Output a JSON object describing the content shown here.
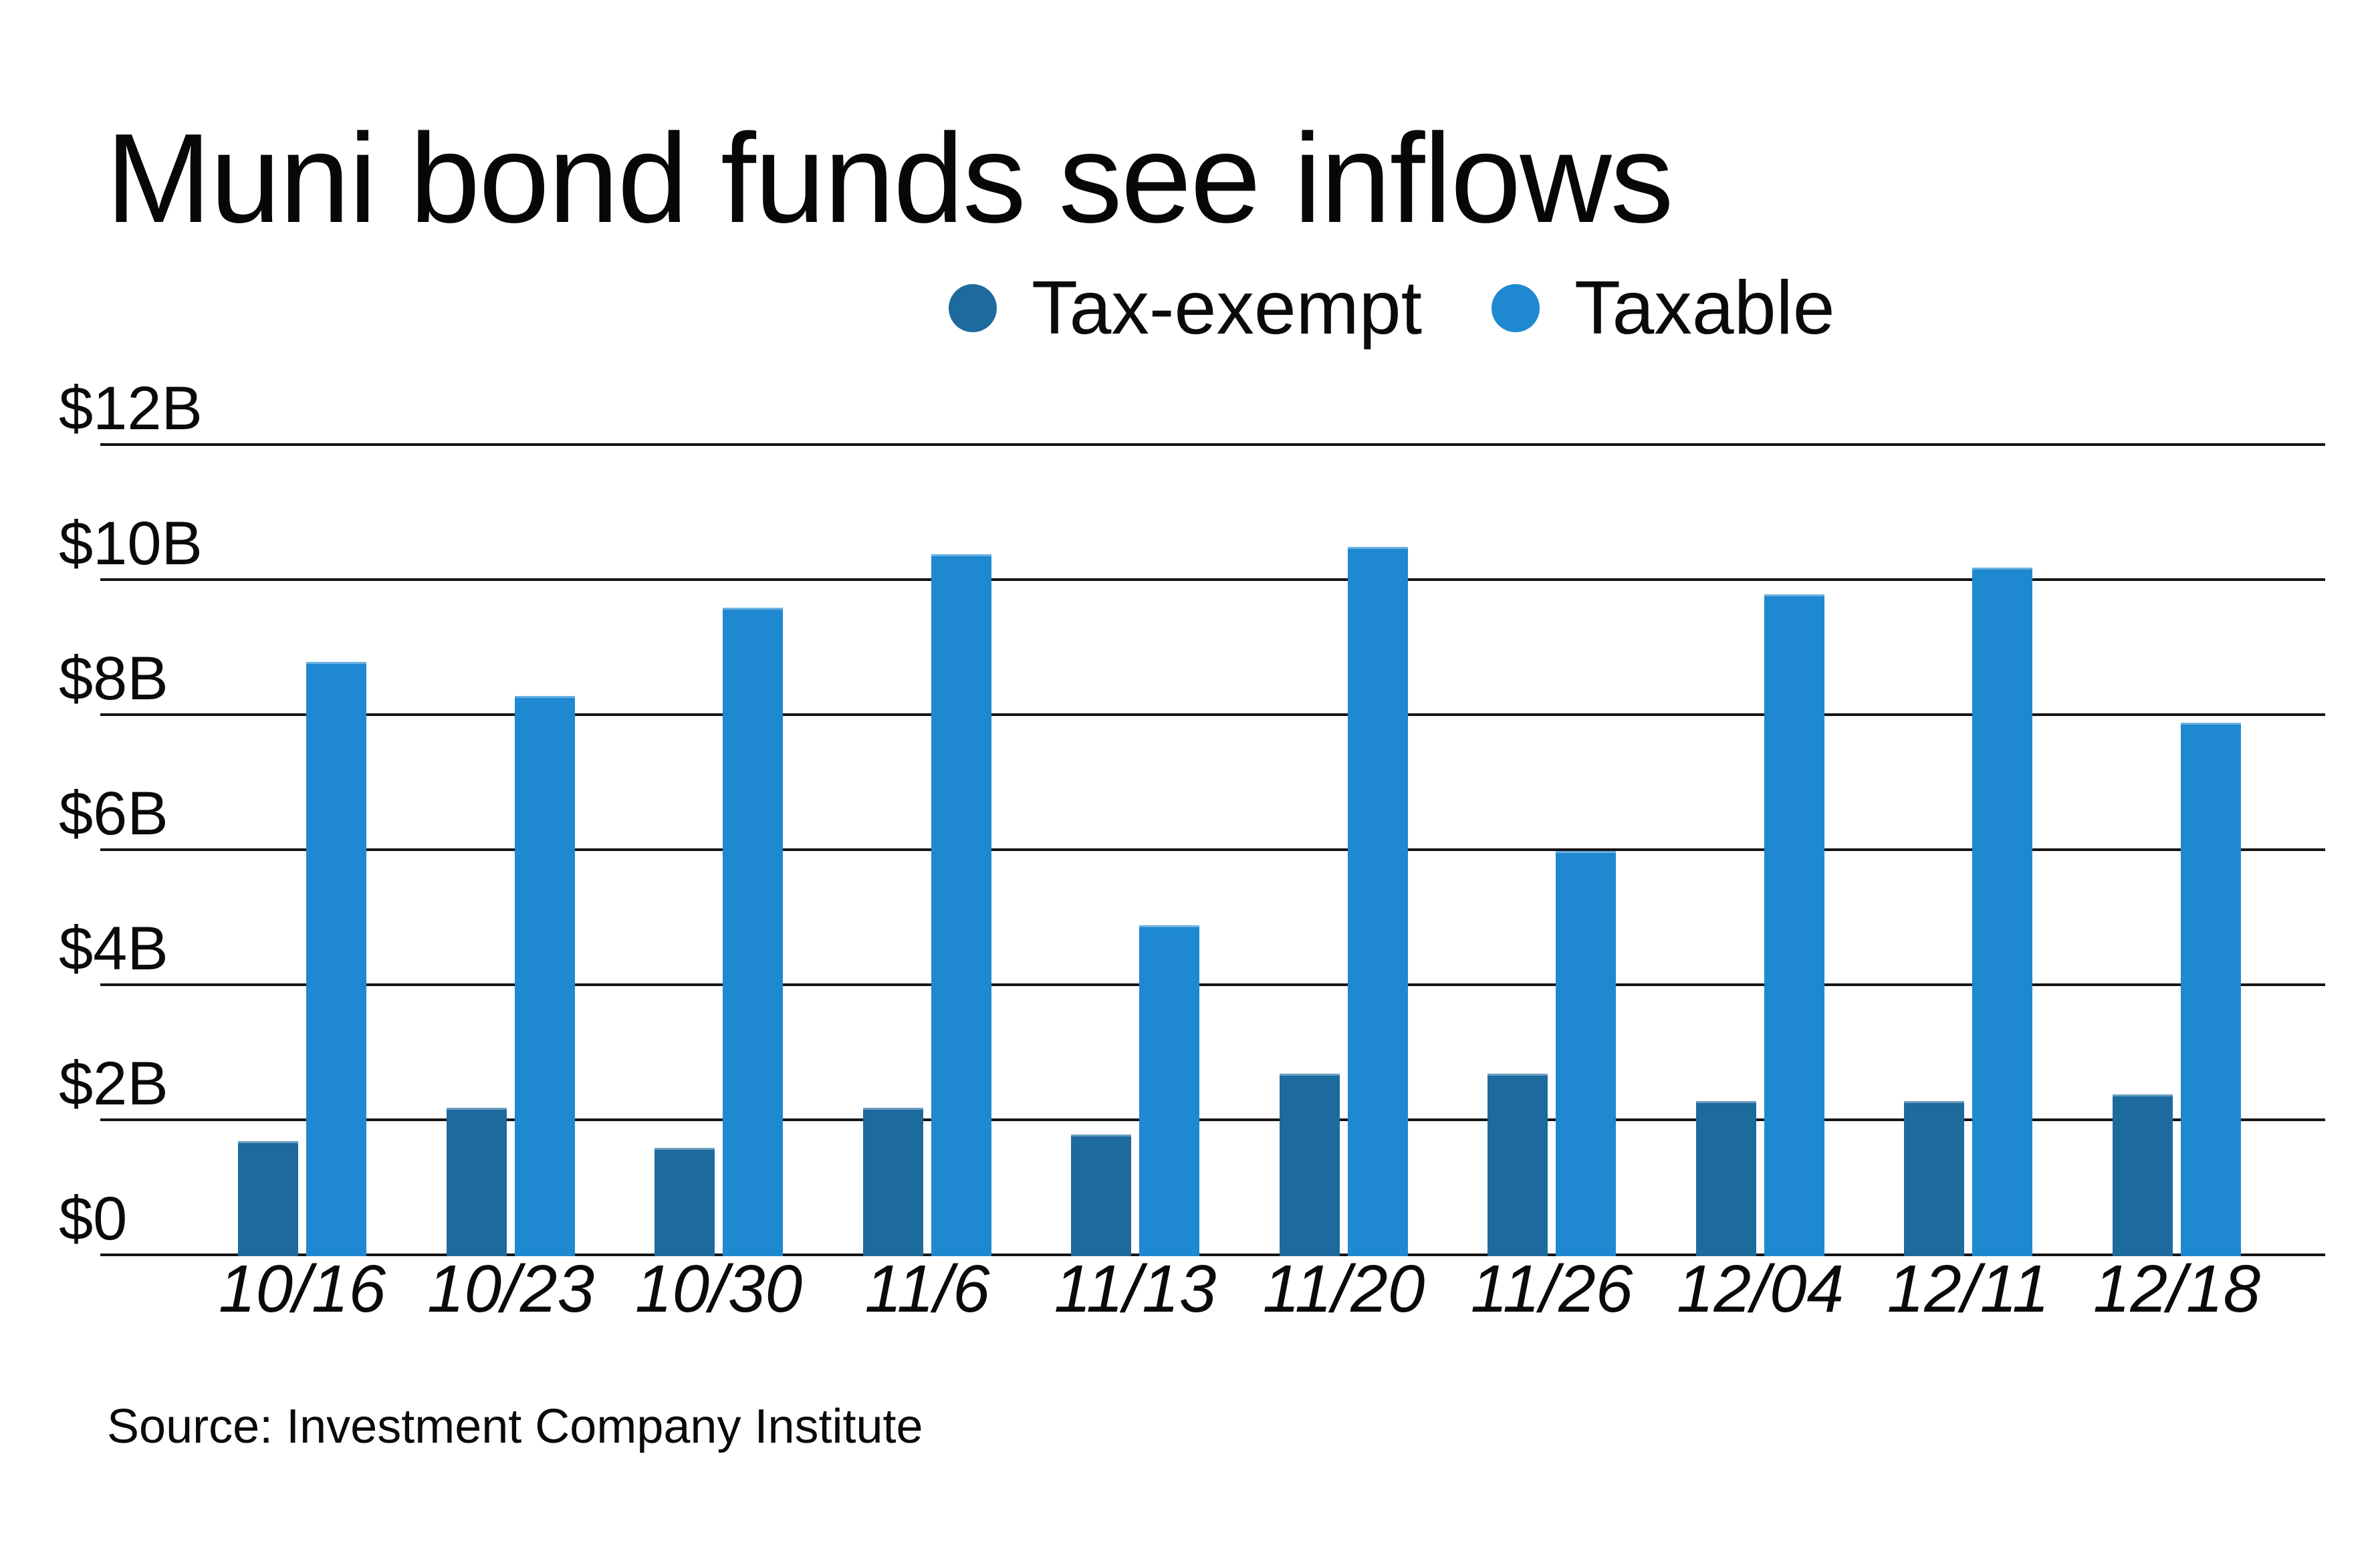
{
  "chart_data": {
    "type": "bar",
    "title": "Muni bond funds see inflows",
    "source": "Source: Investment Company Institute",
    "categories": [
      "10/16",
      "10/23",
      "10/30",
      "11/6",
      "11/13",
      "11/20",
      "11/26",
      "12/04",
      "12/11",
      "12/18"
    ],
    "series": [
      {
        "name": "Tax-exempt",
        "color": "#1d6a9e",
        "values": [
          1.7,
          2.2,
          1.6,
          2.2,
          1.8,
          2.7,
          2.7,
          2.3,
          2.3,
          2.4
        ]
      },
      {
        "name": "Taxable",
        "color": "#1e88d1",
        "values": [
          8.8,
          8.3,
          9.6,
          10.4,
          4.9,
          10.5,
          6.0,
          9.8,
          10.2,
          7.9
        ]
      }
    ],
    "unit": "billions of dollars",
    "ylim": [
      0,
      12
    ],
    "y_ticks": [
      {
        "label": "$12B",
        "value": 12
      },
      {
        "label": "$10B",
        "value": 10
      },
      {
        "label": "$8B",
        "value": 8
      },
      {
        "label": "$6B",
        "value": 6
      },
      {
        "label": "$4B",
        "value": 4
      },
      {
        "label": "$2B",
        "value": 2
      },
      {
        "label": "$0",
        "value": 0
      }
    ],
    "grid": "horizontal",
    "legend_position": "top-center-right"
  }
}
